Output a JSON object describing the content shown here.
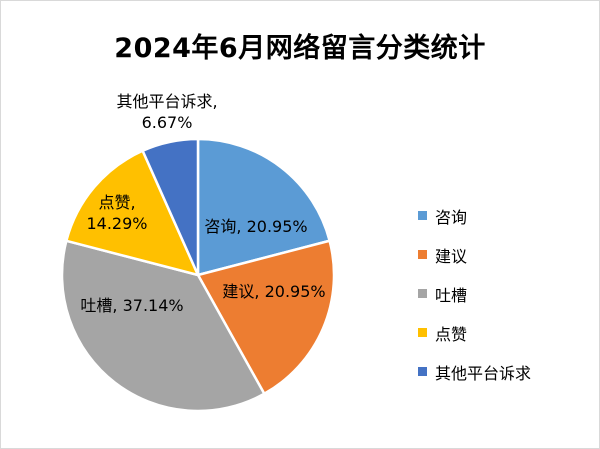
{
  "chart_data": {
    "type": "pie",
    "title": "2024年6月网络留言分类统计",
    "slices": [
      {
        "name": "咨询",
        "value": 20.95,
        "label": "咨询, 20.95%",
        "color": "#5b9bd5"
      },
      {
        "name": "建议",
        "value": 20.95,
        "label": "建议, 20.95%",
        "color": "#ed7d31"
      },
      {
        "name": "吐槽",
        "value": 37.14,
        "label": "吐槽, 37.14%",
        "color": "#a5a5a5"
      },
      {
        "name": "点赞",
        "value": 14.29,
        "label_lines": [
          "点赞,",
          "14.29%"
        ],
        "color": "#ffc000"
      },
      {
        "name": "其他平台诉求",
        "value": 6.67,
        "label_lines": [
          "其他平台诉求,",
          "6.67%"
        ],
        "color": "#4472c4"
      }
    ],
    "legend": {
      "position": "right",
      "items": [
        "咨询",
        "建议",
        "吐槽",
        "点赞",
        "其他平台诉求"
      ]
    }
  }
}
